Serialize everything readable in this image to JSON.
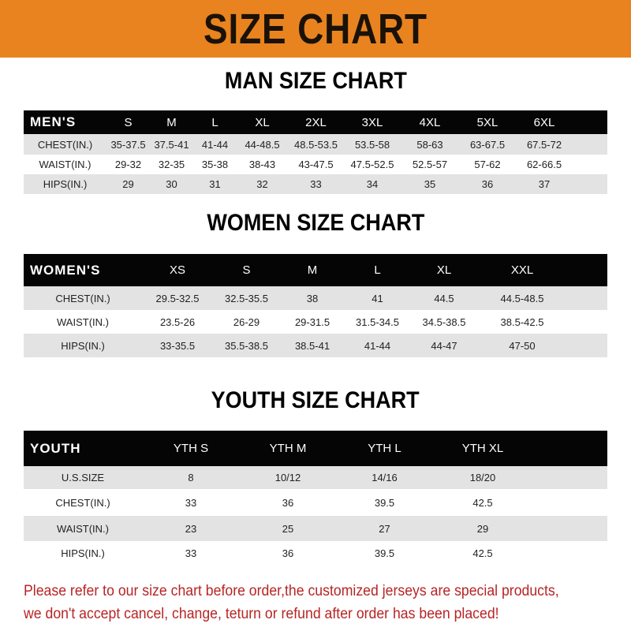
{
  "banner": "SIZE CHART",
  "men": {
    "title": "MAN SIZE CHART",
    "header": [
      "MEN'S",
      "S",
      "M",
      "L",
      "XL",
      "2XL",
      "3XL",
      "4XL",
      "5XL",
      "6XL"
    ],
    "rows": [
      [
        "CHEST(IN.)",
        "35-37.5",
        "37.5-41",
        "41-44",
        "44-48.5",
        "48.5-53.5",
        "53.5-58",
        "58-63",
        "63-67.5",
        "67.5-72"
      ],
      [
        "WAIST(IN.)",
        "29-32",
        "32-35",
        "35-38",
        "38-43",
        "43-47.5",
        "47.5-52.5",
        "52.5-57",
        "57-62",
        "62-66.5"
      ],
      [
        "HIPS(IN.)",
        "29",
        "30",
        "31",
        "32",
        "33",
        "34",
        "35",
        "36",
        "37"
      ]
    ]
  },
  "women": {
    "title": "WOMEN SIZE CHART",
    "header": [
      "WOMEN'S",
      "XS",
      "S",
      "M",
      "L",
      "XL",
      "XXL"
    ],
    "rows": [
      [
        "CHEST(IN.)",
        "29.5-32.5",
        "32.5-35.5",
        "38",
        "41",
        "44.5",
        "44.5-48.5"
      ],
      [
        "WAIST(IN.)",
        "23.5-26",
        "26-29",
        "29-31.5",
        "31.5-34.5",
        "34.5-38.5",
        "38.5-42.5"
      ],
      [
        "HIPS(IN.)",
        "33-35.5",
        "35.5-38.5",
        "38.5-41",
        "41-44",
        "44-47",
        "47-50"
      ]
    ]
  },
  "youth": {
    "title": "YOUTH SIZE CHART",
    "header": [
      "YOUTH",
      "YTH S",
      "YTH M",
      "YTH L",
      "YTH XL"
    ],
    "rows": [
      [
        "U.S.SIZE",
        "8",
        "10/12",
        "14/16",
        "18/20"
      ],
      [
        "CHEST(IN.)",
        "33",
        "36",
        "39.5",
        "42.5"
      ],
      [
        "WAIST(IN.)",
        "23",
        "25",
        "27",
        "29"
      ],
      [
        "HIPS(IN.)",
        "33",
        "36",
        "39.5",
        "42.5"
      ]
    ]
  },
  "footer": [
    "Please refer to our size chart before order,the customized jerseys are special products,",
    "we don't accept cancel, change, teturn or refund after order has been placed!"
  ],
  "colors": {
    "banner": "#e8831f",
    "header_row": "#050505",
    "alt_row": "#e3e3e3",
    "footer_text": "#b82424"
  }
}
